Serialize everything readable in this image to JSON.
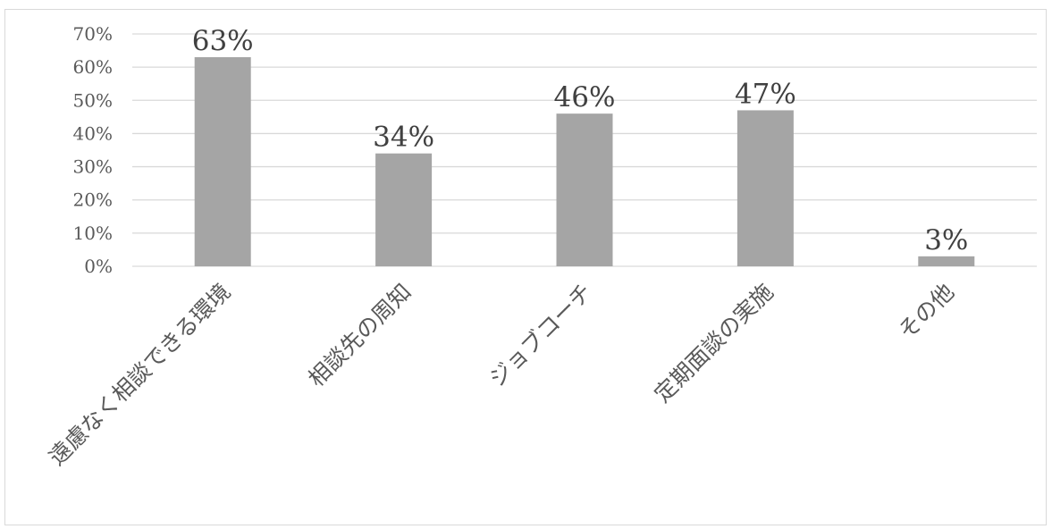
{
  "chart_data": {
    "type": "bar",
    "title": "",
    "xlabel": "",
    "ylabel": "",
    "categories": [
      "遠慮なく相談できる環境",
      "相談先の周知",
      "ジョブコーチ",
      "定期面談の実施",
      "その他"
    ],
    "values": [
      63,
      34,
      46,
      47,
      3
    ],
    "value_labels": [
      "63%",
      "34%",
      "46%",
      "47%",
      "3%"
    ],
    "ylim": [
      0,
      70
    ],
    "yticks": [
      0,
      10,
      20,
      30,
      40,
      50,
      60,
      70
    ],
    "ytick_labels": [
      "0%",
      "10%",
      "20%",
      "30%",
      "40%",
      "50%",
      "60%",
      "70%"
    ],
    "grid": true,
    "legend": "none",
    "bar_color": "#a5a5a5",
    "grid_color": "#d9d9d9"
  }
}
